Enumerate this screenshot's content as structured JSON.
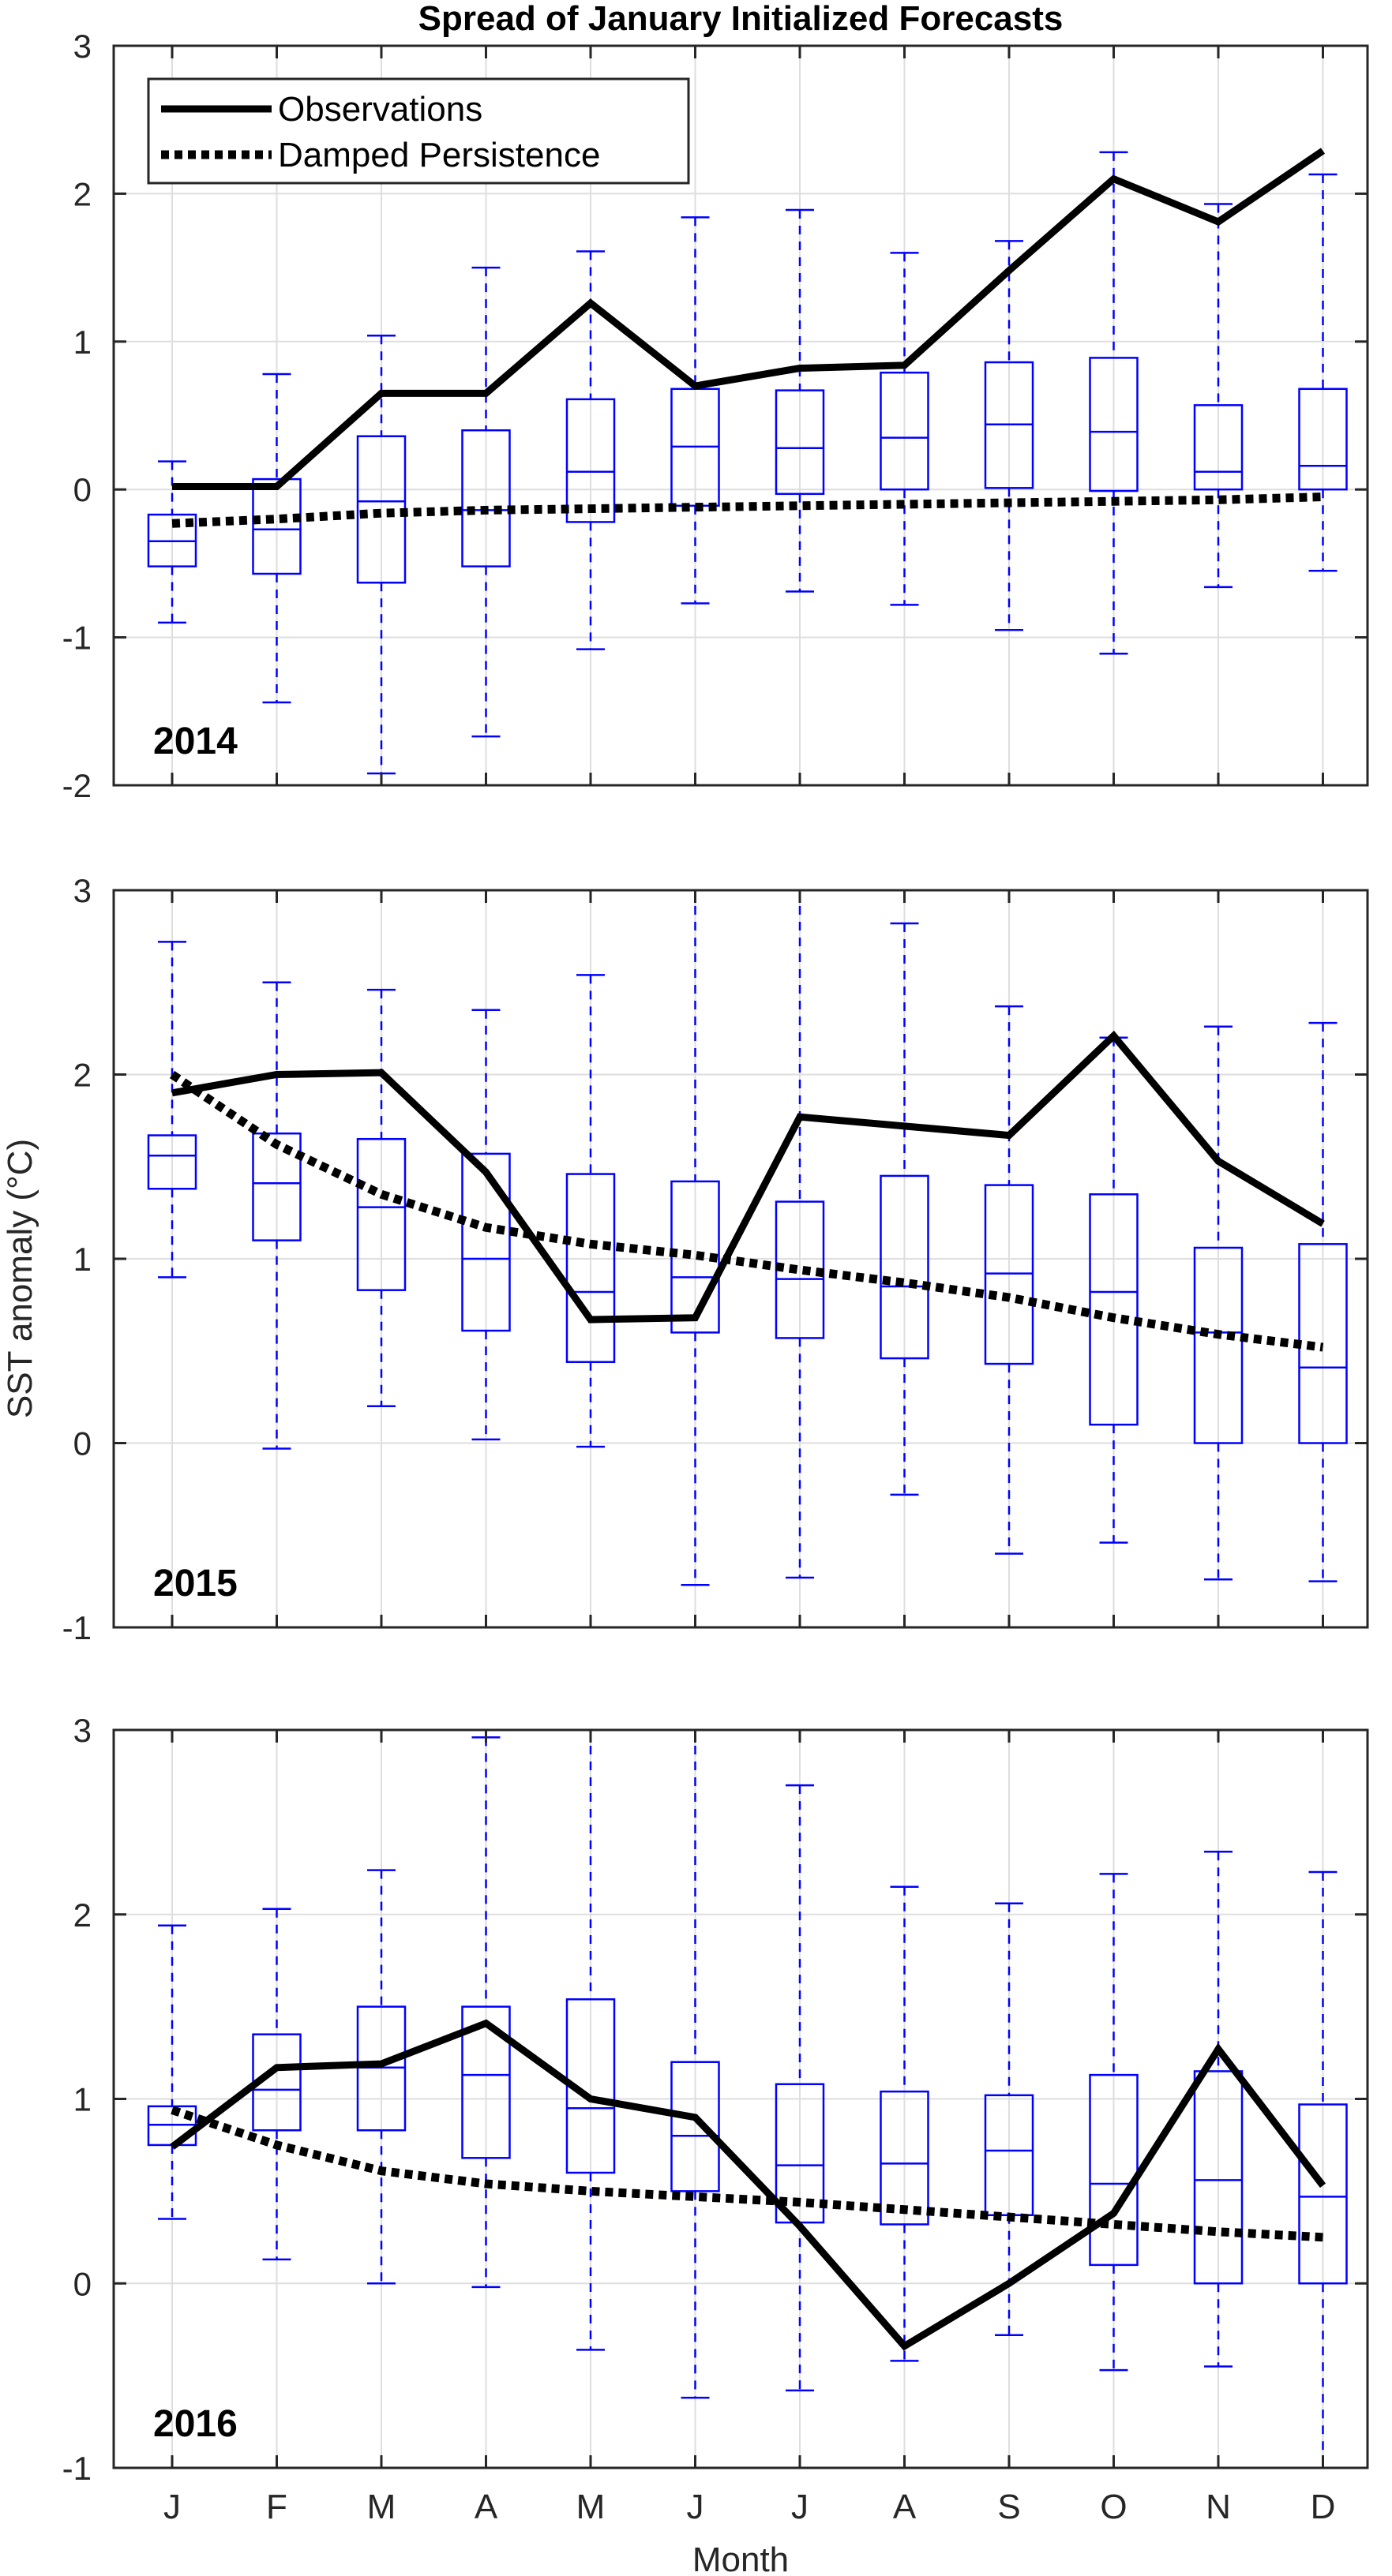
{
  "title": "Spread of January Initialized Forecasts",
  "ylabel": "SST anomaly (°C)",
  "xlabel": "Month",
  "legend": {
    "observations": "Observations",
    "damped": "Damped Persistence"
  },
  "colors": {
    "box": "#0000ff",
    "line": "#000000",
    "grid": "#dedede",
    "axis": "#262626"
  },
  "chart_data": [
    {
      "type": "box",
      "year_label": "2014",
      "categories": [
        "J",
        "F",
        "M",
        "A",
        "M",
        "J",
        "J",
        "A",
        "S",
        "O",
        "N",
        "D"
      ],
      "ylim": [
        -2,
        3
      ],
      "yticks": [
        -2,
        -1,
        0,
        1,
        2,
        3
      ],
      "grid": true,
      "legend_position": "top-left",
      "boxes": [
        {
          "whisker_low": -0.9,
          "q1": -0.52,
          "median": -0.35,
          "q3": -0.17,
          "whisker_high": 0.19
        },
        {
          "whisker_low": -1.44,
          "q1": -0.57,
          "median": -0.27,
          "q3": 0.07,
          "whisker_high": 0.78
        },
        {
          "whisker_low": -1.92,
          "q1": -0.63,
          "median": -0.08,
          "q3": 0.36,
          "whisker_high": 1.04
        },
        {
          "whisker_low": -1.67,
          "q1": -0.52,
          "median": -0.14,
          "q3": 0.4,
          "whisker_high": 1.5
        },
        {
          "whisker_low": -1.08,
          "q1": -0.22,
          "median": 0.12,
          "q3": 0.61,
          "whisker_high": 1.61
        },
        {
          "whisker_low": -0.77,
          "q1": -0.11,
          "median": 0.29,
          "q3": 0.68,
          "whisker_high": 1.84
        },
        {
          "whisker_low": -0.69,
          "q1": -0.03,
          "median": 0.28,
          "q3": 0.67,
          "whisker_high": 1.89
        },
        {
          "whisker_low": -0.78,
          "q1": 0.0,
          "median": 0.35,
          "q3": 0.79,
          "whisker_high": 1.6
        },
        {
          "whisker_low": -0.95,
          "q1": 0.01,
          "median": 0.44,
          "q3": 0.86,
          "whisker_high": 1.68
        },
        {
          "whisker_low": -1.11,
          "q1": -0.01,
          "median": 0.39,
          "q3": 0.89,
          "whisker_high": 2.28
        },
        {
          "whisker_low": -0.66,
          "q1": 0.0,
          "median": 0.12,
          "q3": 0.57,
          "whisker_high": 1.93
        },
        {
          "whisker_low": -0.55,
          "q1": 0.0,
          "median": 0.16,
          "q3": 0.68,
          "whisker_high": 2.13
        }
      ],
      "series": [
        {
          "name": "Observations",
          "values": [
            0.02,
            0.02,
            0.65,
            0.65,
            1.26,
            0.7,
            0.82,
            0.84,
            1.48,
            2.1,
            1.81,
            2.29
          ]
        },
        {
          "name": "Damped Persistence",
          "values": [
            -0.23,
            -0.2,
            -0.16,
            -0.14,
            -0.13,
            -0.12,
            -0.11,
            -0.1,
            -0.09,
            -0.08,
            -0.07,
            -0.05
          ]
        }
      ]
    },
    {
      "type": "box",
      "year_label": "2015",
      "categories": [
        "J",
        "F",
        "M",
        "A",
        "M",
        "J",
        "J",
        "A",
        "S",
        "O",
        "N",
        "D"
      ],
      "ylim": [
        -1,
        3
      ],
      "yticks": [
        -1,
        0,
        1,
        2,
        3
      ],
      "grid": true,
      "boxes": [
        {
          "whisker_low": 0.9,
          "q1": 1.38,
          "median": 1.56,
          "q3": 1.67,
          "whisker_high": 2.72
        },
        {
          "whisker_low": -0.03,
          "q1": 1.1,
          "median": 1.41,
          "q3": 1.68,
          "whisker_high": 2.5
        },
        {
          "whisker_low": 0.2,
          "q1": 0.83,
          "median": 1.28,
          "q3": 1.65,
          "whisker_high": 2.46
        },
        {
          "whisker_low": 0.02,
          "q1": 0.61,
          "median": 1.0,
          "q3": 1.57,
          "whisker_high": 2.35
        },
        {
          "whisker_low": -0.02,
          "q1": 0.44,
          "median": 0.82,
          "q3": 1.46,
          "whisker_high": 2.54
        },
        {
          "whisker_low": -0.77,
          "q1": 0.6,
          "median": 0.9,
          "q3": 1.42,
          "whisker_high": 3.0
        },
        {
          "whisker_low": -0.73,
          "q1": 0.57,
          "median": 0.89,
          "q3": 1.31,
          "whisker_high": 3.0
        },
        {
          "whisker_low": -0.28,
          "q1": 0.46,
          "median": 0.85,
          "q3": 1.45,
          "whisker_high": 2.82
        },
        {
          "whisker_low": -0.6,
          "q1": 0.43,
          "median": 0.92,
          "q3": 1.4,
          "whisker_high": 2.37
        },
        {
          "whisker_low": -0.54,
          "q1": 0.1,
          "median": 0.82,
          "q3": 1.35,
          "whisker_high": 2.2
        },
        {
          "whisker_low": -0.74,
          "q1": 0.0,
          "median": 0.6,
          "q3": 1.06,
          "whisker_high": 2.26
        },
        {
          "whisker_low": -0.75,
          "q1": 0.0,
          "median": 0.41,
          "q3": 1.08,
          "whisker_high": 2.28
        }
      ],
      "series": [
        {
          "name": "Observations",
          "values": [
            1.9,
            2.0,
            2.01,
            1.47,
            0.67,
            0.68,
            1.77,
            1.72,
            1.67,
            2.21,
            1.53,
            1.19
          ]
        },
        {
          "name": "Damped Persistence",
          "values": [
            2.0,
            1.62,
            1.35,
            1.17,
            1.08,
            1.02,
            0.94,
            0.87,
            0.79,
            0.68,
            0.59,
            0.52
          ]
        }
      ]
    },
    {
      "type": "box",
      "year_label": "2016",
      "categories": [
        "J",
        "F",
        "M",
        "A",
        "M",
        "J",
        "J",
        "A",
        "S",
        "O",
        "N",
        "D"
      ],
      "ylim": [
        -1,
        3
      ],
      "yticks": [
        -1,
        0,
        1,
        2,
        3
      ],
      "grid": true,
      "xlabel": "Month",
      "boxes": [
        {
          "whisker_low": 0.35,
          "q1": 0.75,
          "median": 0.86,
          "q3": 0.96,
          "whisker_high": 1.94
        },
        {
          "whisker_low": 0.13,
          "q1": 0.83,
          "median": 1.05,
          "q3": 1.35,
          "whisker_high": 2.03
        },
        {
          "whisker_low": 0.0,
          "q1": 0.83,
          "median": 1.17,
          "q3": 1.5,
          "whisker_high": 2.24
        },
        {
          "whisker_low": -0.02,
          "q1": 0.68,
          "median": 1.13,
          "q3": 1.5,
          "whisker_high": 2.96
        },
        {
          "whisker_low": -0.36,
          "q1": 0.6,
          "median": 0.95,
          "q3": 1.54,
          "whisker_high": 3.0
        },
        {
          "whisker_low": -0.62,
          "q1": 0.5,
          "median": 0.8,
          "q3": 1.2,
          "whisker_high": 3.0
        },
        {
          "whisker_low": -0.58,
          "q1": 0.33,
          "median": 0.64,
          "q3": 1.08,
          "whisker_high": 2.7
        },
        {
          "whisker_low": -0.42,
          "q1": 0.32,
          "median": 0.65,
          "q3": 1.04,
          "whisker_high": 2.15
        },
        {
          "whisker_low": -0.28,
          "q1": 0.37,
          "median": 0.72,
          "q3": 1.02,
          "whisker_high": 2.06
        },
        {
          "whisker_low": -0.47,
          "q1": 0.1,
          "median": 0.54,
          "q3": 1.13,
          "whisker_high": 2.22
        },
        {
          "whisker_low": -0.45,
          "q1": 0.0,
          "median": 0.56,
          "q3": 1.15,
          "whisker_high": 2.34
        },
        {
          "whisker_low": -1.0,
          "q1": 0.0,
          "median": 0.47,
          "q3": 0.97,
          "whisker_high": 2.23
        }
      ],
      "series": [
        {
          "name": "Observations",
          "values": [
            0.74,
            1.17,
            1.19,
            1.41,
            1.0,
            0.9,
            0.31,
            -0.34,
            0.0,
            0.38,
            1.27,
            0.53
          ]
        },
        {
          "name": "Damped Persistence",
          "values": [
            0.94,
            0.75,
            0.61,
            0.54,
            0.5,
            0.47,
            0.44,
            0.4,
            0.36,
            0.32,
            0.28,
            0.25
          ]
        }
      ]
    }
  ]
}
